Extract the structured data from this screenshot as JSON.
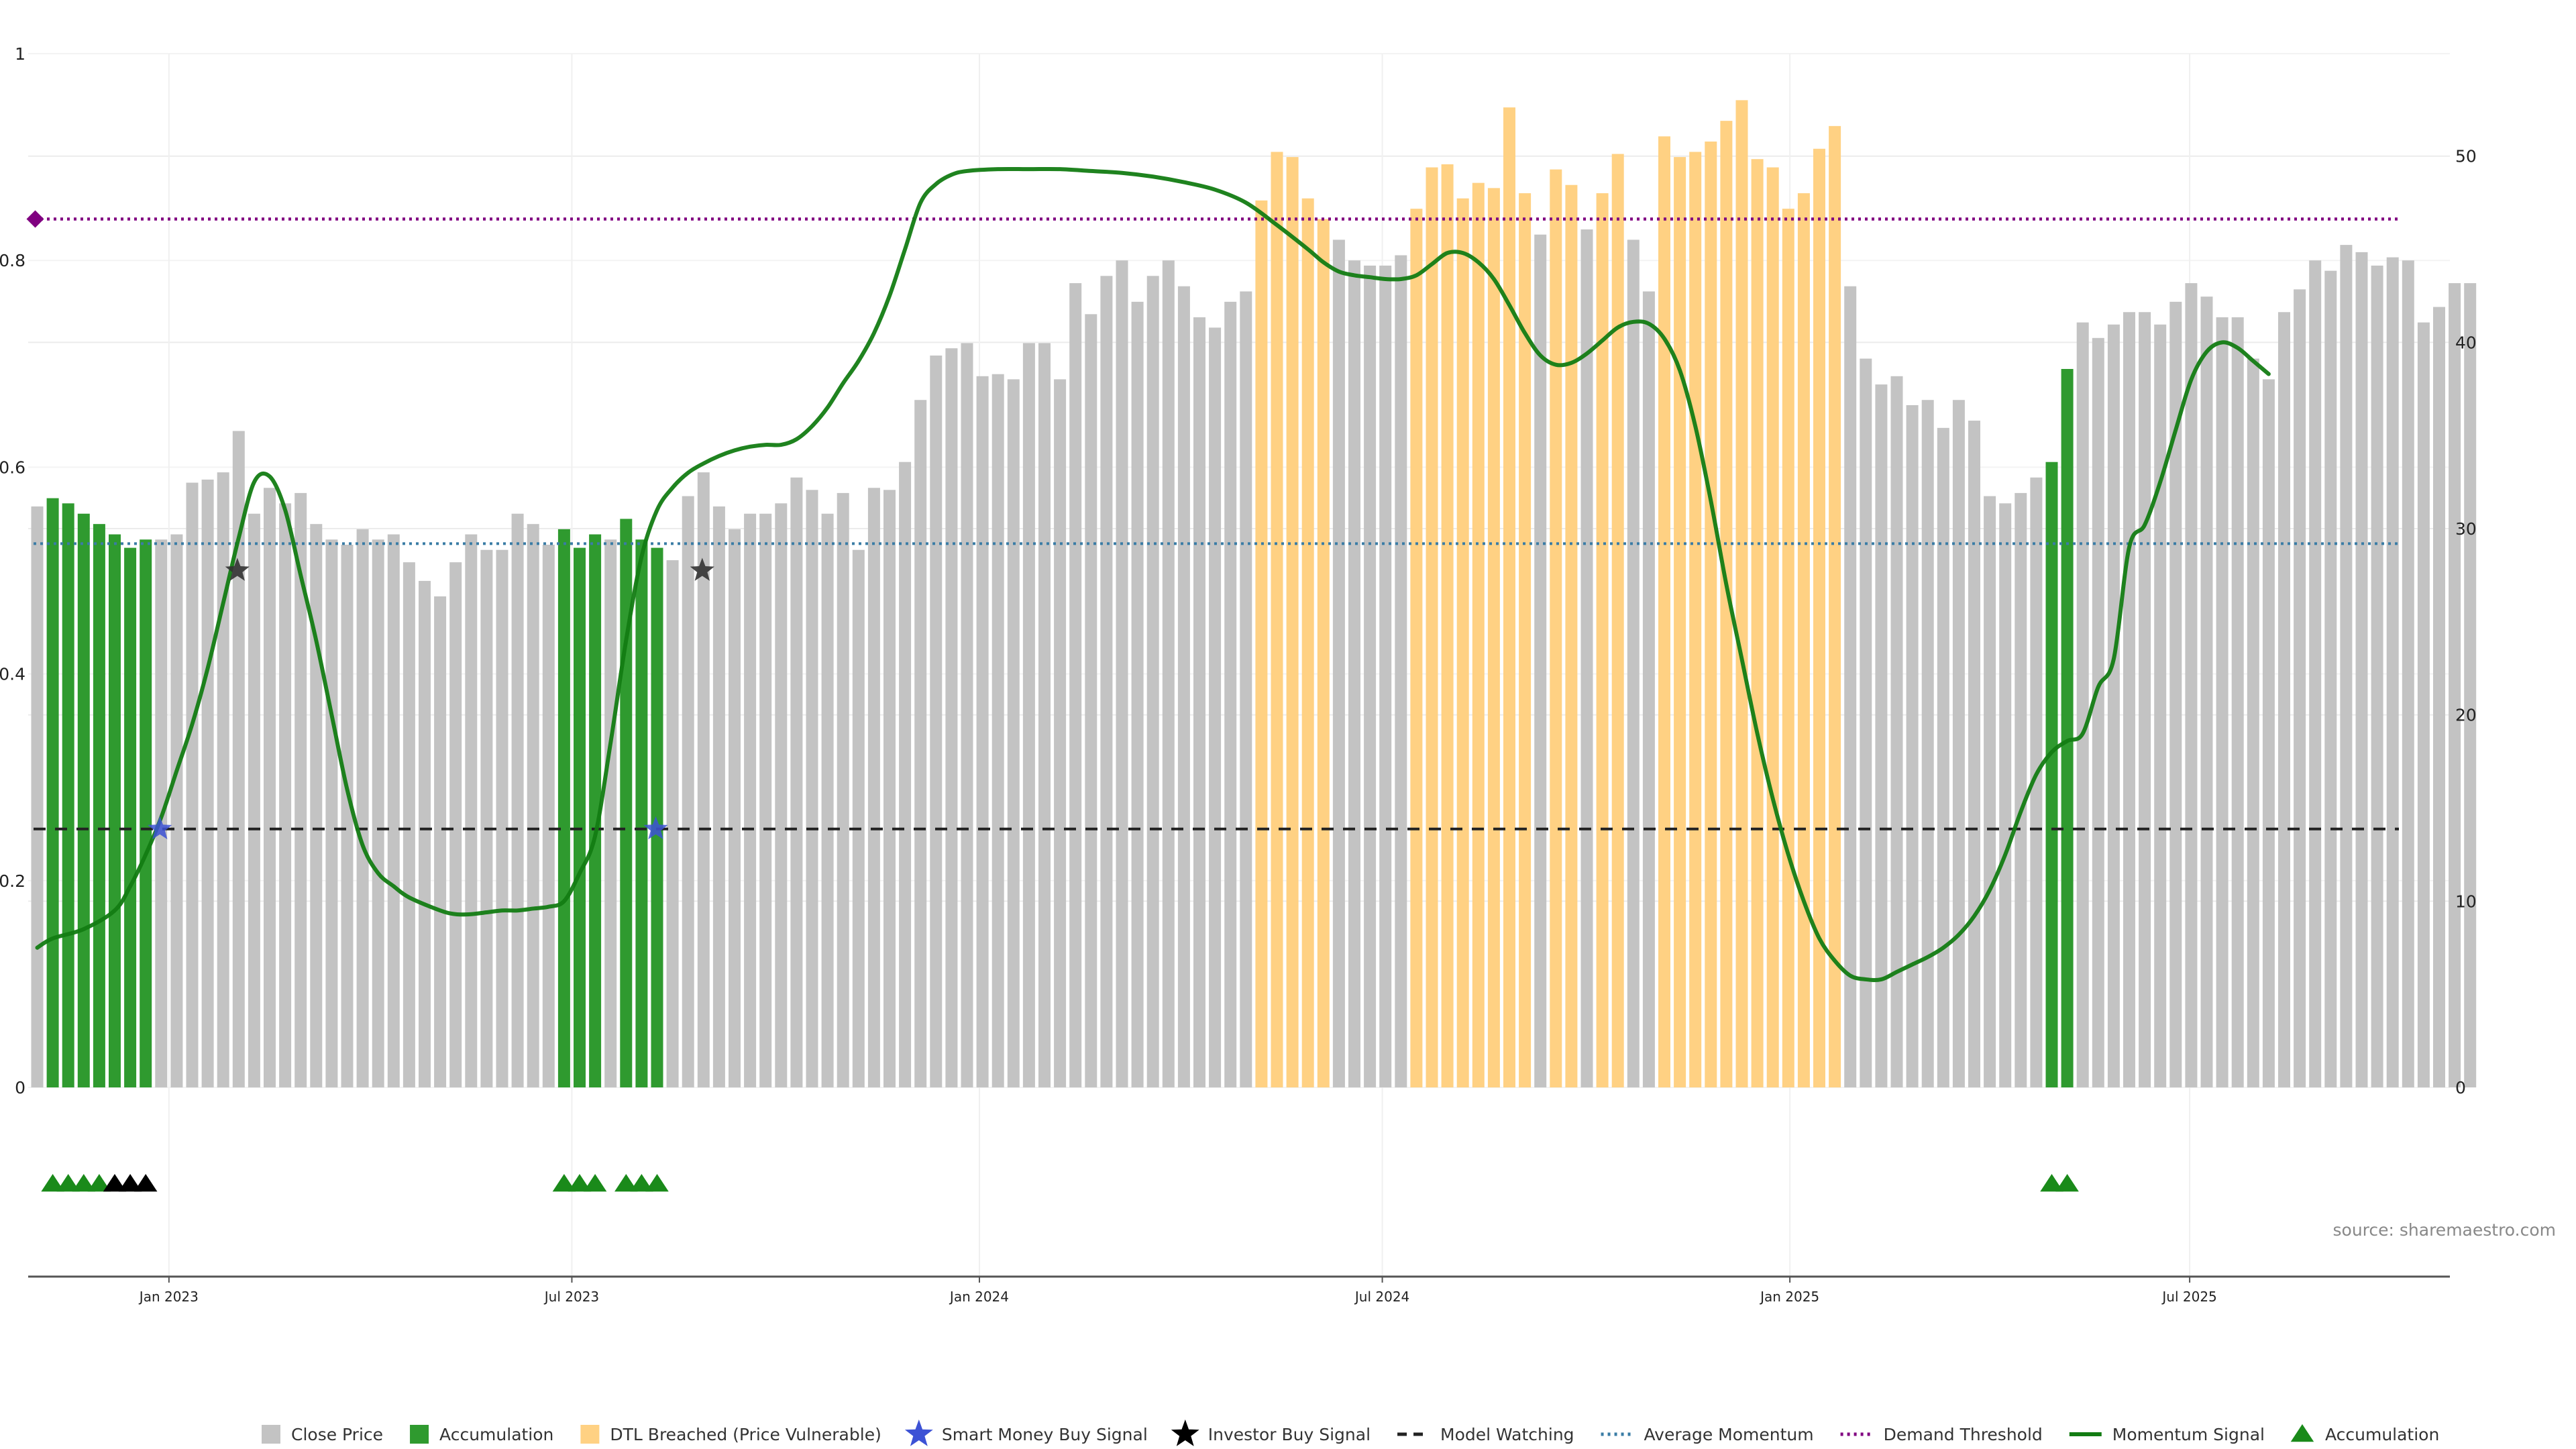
{
  "source_note": "source: sharemaestro.com",
  "colors": {
    "close": "#c3c3c3",
    "accumulation": "#2f9a2f",
    "dtl": "#ffd183",
    "momentum": "#137c13",
    "smart_money": "#3d52d5",
    "investor": "#333333",
    "watching": "#222222",
    "avg_momentum": "#3a7ca5",
    "demand": "#800080",
    "acc_marker": "#1a8a1a",
    "black_marker": "#000000"
  },
  "chart_data": {
    "type": "bar",
    "x_ticks": [
      "Jan 2023",
      "Jul 2023",
      "Jan 2024",
      "Jul 2024",
      "Jan 2025",
      "Jul 2025"
    ],
    "x_tick_bar_index": [
      8.5,
      34.5,
      60.8,
      86.8,
      113.1,
      138.9
    ],
    "left_axis": {
      "min": 0,
      "max": 1,
      "ticks": [
        "0",
        "0.2",
        "0.4",
        "0.6",
        "0.8",
        "1"
      ]
    },
    "right_axis": {
      "min": 0,
      "max": 55.5,
      "ticks": [
        "0",
        "10",
        "20",
        "30",
        "40",
        "50"
      ]
    },
    "bars": [
      [
        0.562,
        "c"
      ],
      [
        0.57,
        "a"
      ],
      [
        0.565,
        "a"
      ],
      [
        0.555,
        "a"
      ],
      [
        0.545,
        "a"
      ],
      [
        0.535,
        "a"
      ],
      [
        0.522,
        "a"
      ],
      [
        0.53,
        "a"
      ],
      [
        0.53,
        "c"
      ],
      [
        0.535,
        "c"
      ],
      [
        0.585,
        "c"
      ],
      [
        0.588,
        "c"
      ],
      [
        0.595,
        "c"
      ],
      [
        0.635,
        "c"
      ],
      [
        0.555,
        "c"
      ],
      [
        0.58,
        "c"
      ],
      [
        0.565,
        "c"
      ],
      [
        0.575,
        "c"
      ],
      [
        0.545,
        "c"
      ],
      [
        0.53,
        "c"
      ],
      [
        0.525,
        "c"
      ],
      [
        0.54,
        "c"
      ],
      [
        0.53,
        "c"
      ],
      [
        0.535,
        "c"
      ],
      [
        0.508,
        "c"
      ],
      [
        0.49,
        "c"
      ],
      [
        0.475,
        "c"
      ],
      [
        0.508,
        "c"
      ],
      [
        0.535,
        "c"
      ],
      [
        0.52,
        "c"
      ],
      [
        0.52,
        "c"
      ],
      [
        0.555,
        "c"
      ],
      [
        0.545,
        "c"
      ],
      [
        0.525,
        "c"
      ],
      [
        0.54,
        "a"
      ],
      [
        0.522,
        "a"
      ],
      [
        0.535,
        "a"
      ],
      [
        0.53,
        "c"
      ],
      [
        0.55,
        "a"
      ],
      [
        0.53,
        "a"
      ],
      [
        0.522,
        "a"
      ],
      [
        0.51,
        "c"
      ],
      [
        0.572,
        "c"
      ],
      [
        0.595,
        "c"
      ],
      [
        0.562,
        "c"
      ],
      [
        0.54,
        "c"
      ],
      [
        0.555,
        "c"
      ],
      [
        0.555,
        "c"
      ],
      [
        0.565,
        "c"
      ],
      [
        0.59,
        "c"
      ],
      [
        0.578,
        "c"
      ],
      [
        0.555,
        "c"
      ],
      [
        0.575,
        "c"
      ],
      [
        0.52,
        "c"
      ],
      [
        0.58,
        "c"
      ],
      [
        0.578,
        "c"
      ],
      [
        0.605,
        "c"
      ],
      [
        0.665,
        "c"
      ],
      [
        0.708,
        "c"
      ],
      [
        0.715,
        "c"
      ],
      [
        0.72,
        "c"
      ],
      [
        0.688,
        "c"
      ],
      [
        0.69,
        "c"
      ],
      [
        0.685,
        "c"
      ],
      [
        0.72,
        "c"
      ],
      [
        0.72,
        "c"
      ],
      [
        0.685,
        "c"
      ],
      [
        0.778,
        "c"
      ],
      [
        0.748,
        "c"
      ],
      [
        0.785,
        "c"
      ],
      [
        0.8,
        "c"
      ],
      [
        0.76,
        "c"
      ],
      [
        0.785,
        "c"
      ],
      [
        0.8,
        "c"
      ],
      [
        0.775,
        "c"
      ],
      [
        0.745,
        "c"
      ],
      [
        0.735,
        "c"
      ],
      [
        0.76,
        "c"
      ],
      [
        0.77,
        "c"
      ],
      [
        0.858,
        "d"
      ],
      [
        0.905,
        "d"
      ],
      [
        0.9,
        "d"
      ],
      [
        0.86,
        "d"
      ],
      [
        0.84,
        "d"
      ],
      [
        0.82,
        "c"
      ],
      [
        0.8,
        "c"
      ],
      [
        0.795,
        "c"
      ],
      [
        0.795,
        "c"
      ],
      [
        0.805,
        "c"
      ],
      [
        0.85,
        "d"
      ],
      [
        0.89,
        "d"
      ],
      [
        0.893,
        "d"
      ],
      [
        0.86,
        "d"
      ],
      [
        0.875,
        "d"
      ],
      [
        0.87,
        "d"
      ],
      [
        0.948,
        "d"
      ],
      [
        0.865,
        "d"
      ],
      [
        0.825,
        "c"
      ],
      [
        0.888,
        "d"
      ],
      [
        0.873,
        "d"
      ],
      [
        0.83,
        "c"
      ],
      [
        0.865,
        "d"
      ],
      [
        0.903,
        "d"
      ],
      [
        0.82,
        "c"
      ],
      [
        0.77,
        "c"
      ],
      [
        0.92,
        "d"
      ],
      [
        0.9,
        "d"
      ],
      [
        0.905,
        "d"
      ],
      [
        0.915,
        "d"
      ],
      [
        0.935,
        "d"
      ],
      [
        0.955,
        "d"
      ],
      [
        0.898,
        "d"
      ],
      [
        0.89,
        "d"
      ],
      [
        0.85,
        "d"
      ],
      [
        0.865,
        "d"
      ],
      [
        0.908,
        "d"
      ],
      [
        0.93,
        "d"
      ],
      [
        0.775,
        "c"
      ],
      [
        0.705,
        "c"
      ],
      [
        0.68,
        "c"
      ],
      [
        0.688,
        "c"
      ],
      [
        0.66,
        "c"
      ],
      [
        0.665,
        "c"
      ],
      [
        0.638,
        "c"
      ],
      [
        0.665,
        "c"
      ],
      [
        0.645,
        "c"
      ],
      [
        0.572,
        "c"
      ],
      [
        0.565,
        "c"
      ],
      [
        0.575,
        "c"
      ],
      [
        0.59,
        "c"
      ],
      [
        0.605,
        "a"
      ],
      [
        0.695,
        "a"
      ],
      [
        0.74,
        "c"
      ],
      [
        0.725,
        "c"
      ],
      [
        0.738,
        "c"
      ],
      [
        0.75,
        "c"
      ],
      [
        0.75,
        "c"
      ],
      [
        0.738,
        "c"
      ],
      [
        0.76,
        "c"
      ],
      [
        0.778,
        "c"
      ],
      [
        0.765,
        "c"
      ],
      [
        0.745,
        "c"
      ],
      [
        0.745,
        "c"
      ],
      [
        0.705,
        "c"
      ],
      [
        0.685,
        "c"
      ],
      [
        0.75,
        "c"
      ],
      [
        0.772,
        "c"
      ],
      [
        0.8,
        "c"
      ],
      [
        0.79,
        "c"
      ],
      [
        0.815,
        "c"
      ],
      [
        0.808,
        "c"
      ],
      [
        0.795,
        "c"
      ],
      [
        0.803,
        "c"
      ],
      [
        0.8,
        "c"
      ],
      [
        0.74,
        "c"
      ],
      [
        0.755,
        "c"
      ],
      [
        0.778,
        "c"
      ],
      [
        0.778,
        "c"
      ]
    ],
    "momentum": [
      [
        0,
        7.5
      ],
      [
        1,
        8
      ],
      [
        3,
        8.5
      ],
      [
        5,
        9.5
      ],
      [
        6,
        10.8
      ],
      [
        7,
        12.5
      ],
      [
        8,
        14.5
      ],
      [
        9,
        17
      ],
      [
        10,
        19.5
      ],
      [
        11,
        22.5
      ],
      [
        12,
        26
      ],
      [
        13,
        29.5
      ],
      [
        14,
        32.5
      ],
      [
        15,
        32.8
      ],
      [
        16,
        31
      ],
      [
        17,
        27.5
      ],
      [
        18,
        24
      ],
      [
        19,
        20
      ],
      [
        20,
        16
      ],
      [
        21,
        13
      ],
      [
        22,
        11.5
      ],
      [
        23,
        10.8
      ],
      [
        24,
        10.2
      ],
      [
        26,
        9.5
      ],
      [
        27,
        9.3
      ],
      [
        28,
        9.3
      ],
      [
        29,
        9.4
      ],
      [
        30,
        9.5
      ],
      [
        31,
        9.5
      ],
      [
        32,
        9.6
      ],
      [
        33,
        9.7
      ],
      [
        34,
        10
      ],
      [
        35,
        11.5
      ],
      [
        36,
        13.5
      ],
      [
        37,
        18.5
      ],
      [
        38,
        24
      ],
      [
        39,
        28.5
      ],
      [
        40,
        31
      ],
      [
        41,
        32.2
      ],
      [
        42,
        33
      ],
      [
        43,
        33.5
      ],
      [
        44,
        33.9
      ],
      [
        45,
        34.2
      ],
      [
        46,
        34.4
      ],
      [
        47,
        34.5
      ],
      [
        48,
        34.5
      ],
      [
        49,
        34.8
      ],
      [
        50,
        35.5
      ],
      [
        51,
        36.5
      ],
      [
        52,
        37.8
      ],
      [
        53,
        39
      ],
      [
        54,
        40.5
      ],
      [
        55,
        42.5
      ],
      [
        56,
        45
      ],
      [
        57,
        47.5
      ],
      [
        58,
        48.5
      ],
      [
        59,
        49
      ],
      [
        60,
        49.2
      ],
      [
        62,
        49.3
      ],
      [
        64,
        49.3
      ],
      [
        66,
        49.3
      ],
      [
        68,
        49.2
      ],
      [
        70,
        49.1
      ],
      [
        72,
        48.9
      ],
      [
        74,
        48.6
      ],
      [
        76,
        48.2
      ],
      [
        78,
        47.5
      ],
      [
        80,
        46.3
      ],
      [
        82,
        45
      ],
      [
        83,
        44.3
      ],
      [
        84,
        43.8
      ],
      [
        85,
        43.6
      ],
      [
        86,
        43.5
      ],
      [
        87,
        43.4
      ],
      [
        88,
        43.4
      ],
      [
        89,
        43.6
      ],
      [
        90,
        44.2
      ],
      [
        91,
        44.8
      ],
      [
        92,
        44.8
      ],
      [
        93,
        44.3
      ],
      [
        94,
        43.4
      ],
      [
        95,
        42
      ],
      [
        96,
        40.5
      ],
      [
        97,
        39.3
      ],
      [
        98,
        38.8
      ],
      [
        99,
        38.9
      ],
      [
        100,
        39.4
      ],
      [
        101,
        40.1
      ],
      [
        102,
        40.8
      ],
      [
        103,
        41.1
      ],
      [
        104,
        41
      ],
      [
        105,
        40.2
      ],
      [
        106,
        38.5
      ],
      [
        107,
        35.5
      ],
      [
        108,
        31.5
      ],
      [
        109,
        27
      ],
      [
        110,
        23
      ],
      [
        111,
        19
      ],
      [
        112,
        15.5
      ],
      [
        113,
        12.5
      ],
      [
        114,
        10
      ],
      [
        115,
        8
      ],
      [
        116,
        6.8
      ],
      [
        117,
        6
      ],
      [
        118,
        5.8
      ],
      [
        119,
        5.8
      ],
      [
        120,
        6.2
      ],
      [
        121,
        6.6
      ],
      [
        122,
        7
      ],
      [
        123,
        7.5
      ],
      [
        124,
        8.2
      ],
      [
        125,
        9.2
      ],
      [
        126,
        10.6
      ],
      [
        127,
        12.5
      ],
      [
        128,
        14.8
      ],
      [
        129,
        16.8
      ],
      [
        130,
        18
      ],
      [
        131,
        18.6
      ],
      [
        132,
        19
      ],
      [
        133,
        21.5
      ],
      [
        134,
        23
      ],
      [
        135,
        29
      ],
      [
        136,
        30.2
      ],
      [
        137,
        32.5
      ],
      [
        138,
        35.3
      ],
      [
        139,
        38
      ],
      [
        140,
        39.5
      ],
      [
        141,
        40
      ],
      [
        142,
        39.7
      ],
      [
        143,
        39
      ],
      [
        144,
        38.3
      ]
    ],
    "lines": {
      "watching": 0.25,
      "avg_momentum": 0.526,
      "demand": 0.84
    },
    "smart_money_signals": [
      [
        8,
        0.25
      ],
      [
        40,
        0.25
      ]
    ],
    "investor_signals": [
      [
        13,
        0.5
      ],
      [
        43,
        0.5
      ]
    ],
    "demand_marker": [
      0,
      0.84
    ],
    "accumulation_markers": [
      [
        1,
        "g"
      ],
      [
        2,
        "g"
      ],
      [
        3,
        "g"
      ],
      [
        4,
        "g"
      ],
      [
        5,
        "k"
      ],
      [
        6,
        "k"
      ],
      [
        7,
        "k"
      ],
      [
        34,
        "g"
      ],
      [
        35,
        "g"
      ],
      [
        36,
        "g"
      ],
      [
        38,
        "g"
      ],
      [
        39,
        "g"
      ],
      [
        40,
        "g"
      ],
      [
        130,
        "g"
      ],
      [
        131,
        "g"
      ]
    ],
    "legend": [
      {
        "label": "Close Price",
        "kind": "square",
        "color_key": "close"
      },
      {
        "label": "Accumulation",
        "kind": "square",
        "color_key": "accumulation"
      },
      {
        "label": "DTL Breached (Price Vulnerable)",
        "kind": "square",
        "color_key": "dtl"
      },
      {
        "label": "Smart Money Buy Signal",
        "kind": "star",
        "color_key": "smart_money"
      },
      {
        "label": "Investor Buy Signal",
        "kind": "star",
        "color_key": "black_marker"
      },
      {
        "label": "Model Watching",
        "kind": "dash",
        "color_key": "watching"
      },
      {
        "label": "Average Momentum",
        "kind": "dot",
        "color_key": "avg_momentum"
      },
      {
        "label": "Demand Threshold",
        "kind": "dot",
        "color_key": "demand"
      },
      {
        "label": "Momentum Signal",
        "kind": "line",
        "color_key": "momentum"
      },
      {
        "label": "Accumulation",
        "kind": "triangle",
        "color_key": "acc_marker"
      }
    ]
  }
}
